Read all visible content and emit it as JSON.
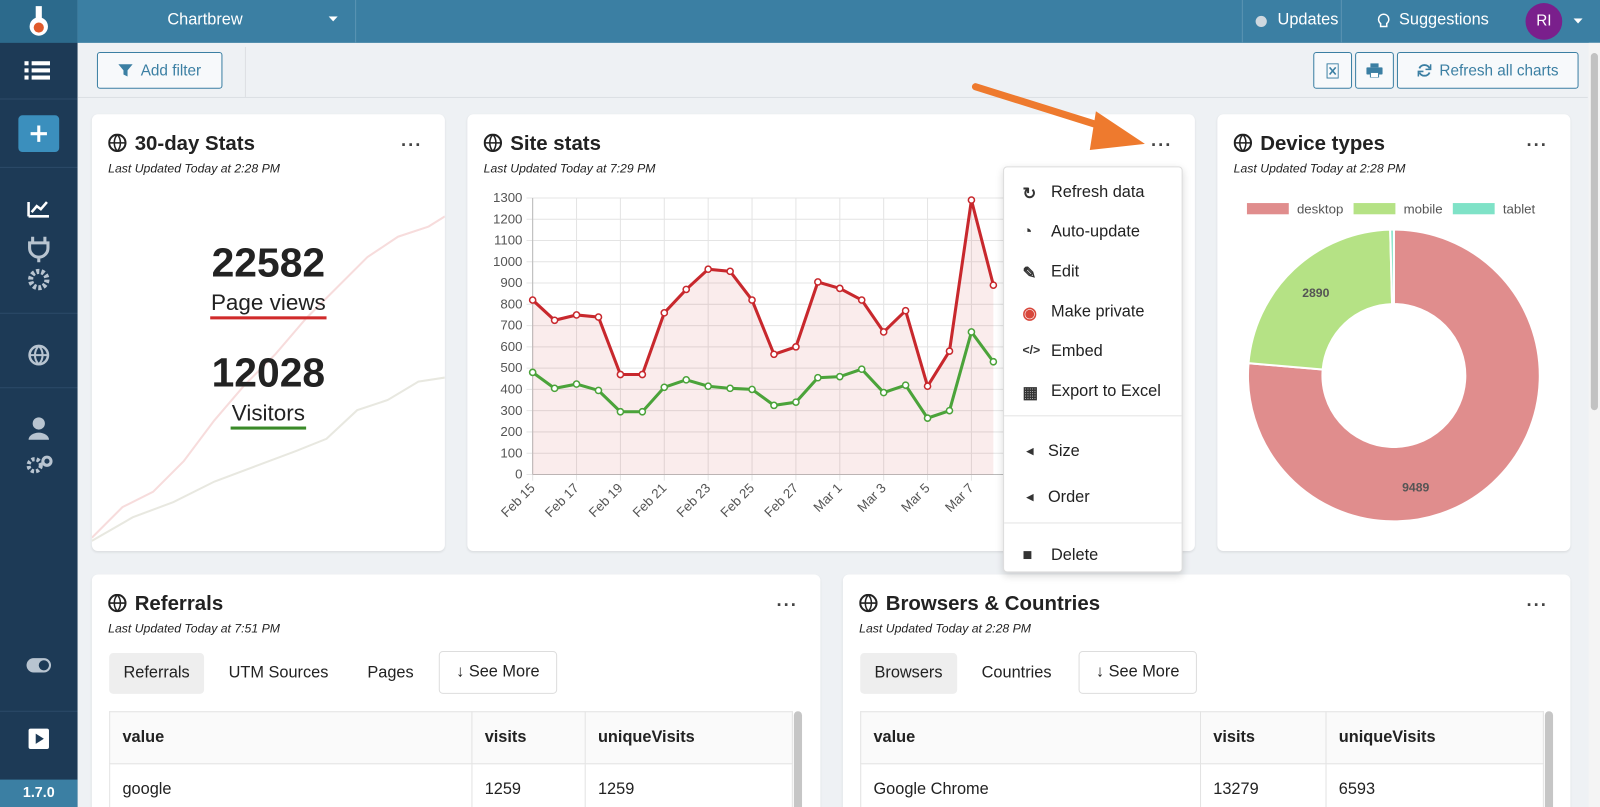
{
  "app": {
    "name": "Chartbrew",
    "version": "1.7.0"
  },
  "topbar": {
    "updates": "Updates",
    "suggestions": "Suggestions",
    "avatar": "RI"
  },
  "toolbar": {
    "add_filter": "Add filter",
    "refresh_all": "Refresh all charts"
  },
  "stats_card": {
    "title": "30-day Stats",
    "updated": "Last Updated Today at 2:28 PM",
    "metrics": [
      {
        "value": 22582,
        "label": "Page views"
      },
      {
        "value": 12028,
        "label": "Visitors"
      }
    ]
  },
  "site_stats": {
    "title": "Site stats",
    "updated": "Last Updated Today at 7:29 PM",
    "chart_data": {
      "type": "line",
      "categories": [
        "Feb 15",
        null,
        "Feb 17",
        null,
        "Feb 19",
        null,
        "Feb 21",
        null,
        "Feb 23",
        null,
        "Feb 25",
        null,
        "Feb 27",
        null,
        "Mar 1",
        null,
        "Mar 3",
        null,
        "Mar 5",
        null,
        "Mar 7",
        null
      ],
      "series": [
        {
          "color": "#c8282d",
          "values": [
            820,
            725,
            750,
            740,
            470,
            470,
            760,
            870,
            965,
            955,
            820,
            565,
            600,
            905,
            875,
            820,
            670,
            770,
            415,
            580,
            1290,
            890
          ]
        },
        {
          "color": "#4ba33a",
          "values": [
            480,
            405,
            425,
            395,
            295,
            295,
            410,
            445,
            415,
            405,
            400,
            325,
            340,
            455,
            460,
            495,
            385,
            420,
            265,
            300,
            670,
            530
          ]
        }
      ],
      "ylim": [
        0,
        1300
      ],
      "yticks": [
        0,
        100,
        200,
        300,
        400,
        500,
        600,
        700,
        800,
        900,
        1000,
        1100,
        1200,
        1300
      ],
      "grid": true
    }
  },
  "menu": {
    "items": [
      "Refresh data",
      "Auto-update",
      "Edit",
      "Make private",
      "Embed",
      "Export to Excel",
      "Size",
      "Order",
      "Delete"
    ]
  },
  "device_types": {
    "title": "Device types",
    "updated": "Last Updated Today at 2:28 PM",
    "chart_data": {
      "type": "doughnut",
      "categories": [
        "desktop",
        "mobile",
        "tablet"
      ],
      "values": [
        9489,
        2890,
        50
      ],
      "colors": [
        "#e08d8d",
        "#b5e285",
        "#7fe2c7"
      ],
      "legend": "top"
    }
  },
  "referrals": {
    "title": "Referrals",
    "updated": "Last Updated Today at 7:51 PM",
    "tabs": [
      "Referrals",
      "UTM Sources",
      "Pages"
    ],
    "see_more": "See More",
    "table": {
      "columns": [
        "value",
        "visits",
        "uniqueVisits"
      ],
      "rows": [
        [
          "google",
          1259,
          1259
        ]
      ]
    }
  },
  "browsers": {
    "title": "Browsers & Countries",
    "updated": "Last Updated Today at 2:28 PM",
    "tabs": [
      "Browsers",
      "Countries"
    ],
    "see_more": "See More",
    "table": {
      "columns": [
        "value",
        "visits",
        "uniqueVisits"
      ],
      "rows": [
        [
          "Google Chrome",
          13279,
          6593
        ]
      ]
    }
  }
}
